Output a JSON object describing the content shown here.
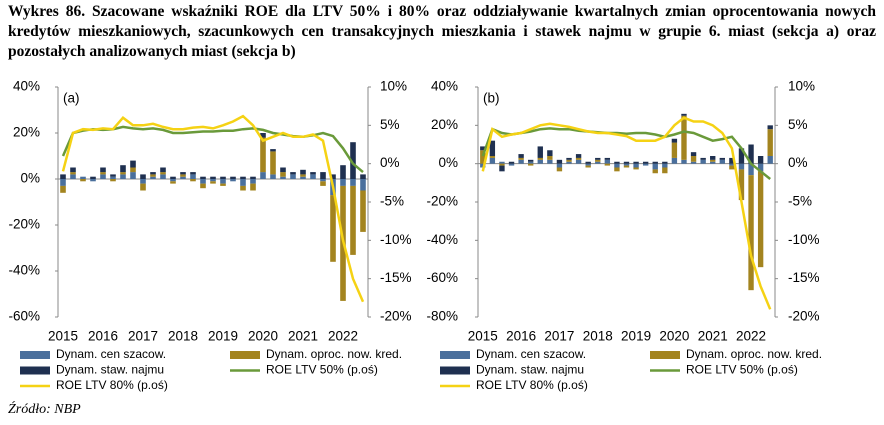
{
  "title": "Wykres 86. Szacowane wskaźniki ROE dla LTV 50% i 80% oraz oddziaływanie kwartalnych zmian oprocentowania nowych kredytów mieszkaniowych, szacunkowych cen transakcyjnych mieszkania i stawek najmu w grupie 6. miast (sekcja a) oraz pozostałych analizowanych miast (sekcja b)",
  "source": "Źródło: NBP",
  "chart_data": [
    {
      "type": "bar",
      "panel_label": "(a)",
      "stacked": true,
      "categories": [
        "2015",
        null,
        null,
        null,
        "2016",
        null,
        null,
        null,
        "2017",
        null,
        null,
        null,
        "2018",
        null,
        null,
        null,
        "2019",
        null,
        null,
        null,
        "2020",
        null,
        null,
        null,
        "2021",
        null,
        null,
        null,
        "2022",
        null,
        null
      ],
      "ylim": [
        -60,
        40
      ],
      "yticks": [
        {
          "value": -60,
          "label": "-60%"
        },
        {
          "value": -40,
          "label": "-40%"
        },
        {
          "value": -20,
          "label": "-20%"
        },
        {
          "value": 0,
          "label": "0%"
        },
        {
          "value": 20,
          "label": "20%"
        },
        {
          "value": 40,
          "label": "40%"
        }
      ],
      "y2lim": [
        -20,
        10
      ],
      "y2ticks": [
        {
          "value": -20,
          "label": "-20%"
        },
        {
          "value": -15,
          "label": "-15%"
        },
        {
          "value": -10,
          "label": "-10%"
        },
        {
          "value": -5,
          "label": "-5%"
        },
        {
          "value": 0,
          "label": "0%"
        },
        {
          "value": 5,
          "label": "5%"
        },
        {
          "value": 10,
          "label": "10%"
        }
      ],
      "series": [
        {
          "name": "Dynam. cen szacow.",
          "color": "#4a6f9c",
          "values": [
            -3,
            2,
            1,
            -1,
            2,
            1,
            2,
            3,
            -2,
            1,
            2,
            -1,
            1,
            2,
            -2,
            -1,
            -2,
            -1,
            -3,
            -2,
            3,
            2,
            1,
            2,
            1,
            2,
            -1,
            -7,
            -3,
            -3,
            -5
          ]
        },
        {
          "name": "Dynam. oproc. now. kred.",
          "color": "#a3841f",
          "values": [
            -3,
            1,
            -1,
            0,
            1,
            -1,
            1,
            2,
            -3,
            1,
            1,
            -1,
            1,
            -1,
            -2,
            -1,
            -1,
            0,
            -2,
            -3,
            15,
            10,
            2,
            0,
            1,
            0,
            -2,
            -29,
            -50,
            -30,
            -18
          ]
        },
        {
          "name": "Dynam. staw. najmu",
          "color": "#1f3050",
          "values": [
            2,
            2,
            0,
            1,
            2,
            1,
            3,
            3,
            2,
            1,
            2,
            1,
            1,
            1,
            1,
            1,
            1,
            1,
            1,
            1,
            2,
            1,
            2,
            1,
            2,
            1,
            3,
            2,
            6,
            16,
            2
          ]
        },
        {
          "name": "ROE LTV 50% (p.oś)",
          "type": "line",
          "axis": "y2",
          "color": "#6a9a3a",
          "values": [
            1,
            4,
            4.3,
            4.5,
            4.4,
            4.5,
            4.8,
            4.6,
            4.5,
            4.6,
            4.4,
            4,
            4,
            4.1,
            4.2,
            4.2,
            4.3,
            4.3,
            4.5,
            4.6,
            4.4,
            4,
            3.8,
            3.6,
            3.5,
            3.7,
            4,
            3.6,
            2,
            0,
            -1.1
          ]
        },
        {
          "name": "ROE LTV 80% (p.oś)",
          "type": "line",
          "axis": "y2",
          "color": "#f5d214",
          "values": [
            -1,
            4,
            4.5,
            4.4,
            4.6,
            4.5,
            6,
            5,
            5,
            5.2,
            4.8,
            4.5,
            4.5,
            4.7,
            4.8,
            4.6,
            5,
            5.5,
            6.2,
            5,
            3,
            3.5,
            4,
            3.5,
            3.5,
            3.8,
            3,
            -3,
            -10,
            -15,
            -18
          ]
        }
      ]
    },
    {
      "type": "bar",
      "panel_label": "(b)",
      "stacked": true,
      "categories": [
        "2015",
        null,
        null,
        null,
        "2016",
        null,
        null,
        null,
        "2017",
        null,
        null,
        null,
        "2018",
        null,
        null,
        null,
        "2019",
        null,
        null,
        null,
        "2020",
        null,
        null,
        null,
        "2021",
        null,
        null,
        null,
        "2022",
        null,
        null
      ],
      "ylim": [
        -80,
        40
      ],
      "yticks": [
        {
          "value": -80,
          "label": "-80%"
        },
        {
          "value": -60,
          "label": "-60%"
        },
        {
          "value": -40,
          "label": "-40%"
        },
        {
          "value": -20,
          "label": "-20%"
        },
        {
          "value": 0,
          "label": "0%"
        },
        {
          "value": 20,
          "label": "20%"
        },
        {
          "value": 40,
          "label": "40%"
        }
      ],
      "y2lim": [
        -20,
        10
      ],
      "y2ticks": [
        {
          "value": -20,
          "label": "-20%"
        },
        {
          "value": -15,
          "label": "-15%"
        },
        {
          "value": -10,
          "label": "-10%"
        },
        {
          "value": -5,
          "label": "-5%"
        },
        {
          "value": 0,
          "label": "0%"
        },
        {
          "value": 5,
          "label": "5%"
        },
        {
          "value": 10,
          "label": "10%"
        }
      ],
      "series": [
        {
          "name": "Dynam. cen szacow.",
          "color": "#4a6f9c",
          "values": [
            -2,
            3,
            1,
            -1,
            2,
            1,
            2,
            2,
            -2,
            1,
            2,
            -1,
            1,
            2,
            -2,
            -1,
            -2,
            -1,
            -3,
            -2,
            3,
            2,
            1,
            2,
            1,
            2,
            -1,
            -3,
            -6,
            -4,
            4
          ]
        },
        {
          "name": "Dynam. oproc. now. kred.",
          "color": "#a3841f",
          "values": [
            7,
            1,
            -1,
            0,
            1,
            -1,
            1,
            2,
            -2,
            1,
            1,
            -1,
            1,
            -1,
            -2,
            -1,
            -1,
            0,
            -2,
            -3,
            8,
            23,
            3,
            0,
            1,
            0,
            -2,
            -16,
            -60,
            -50,
            14
          ]
        },
        {
          "name": "Dynam. staw. najmu",
          "color": "#1f3050",
          "values": [
            2,
            8,
            -3,
            1,
            2,
            1,
            6,
            3,
            2,
            1,
            2,
            1,
            1,
            1,
            1,
            1,
            1,
            1,
            1,
            1,
            2,
            1,
            2,
            1,
            2,
            1,
            3,
            8,
            10,
            4,
            2
          ]
        },
        {
          "name": "ROE LTV 50% (p.oś)",
          "type": "line",
          "axis": "y2",
          "color": "#6a9a3a",
          "values": [
            1,
            4.5,
            4,
            3.8,
            4,
            4.2,
            4.5,
            4.6,
            4.5,
            4.5,
            4.3,
            4.2,
            4.1,
            4,
            4,
            3.9,
            4,
            4,
            3.8,
            3.5,
            3.8,
            4.2,
            4,
            3.5,
            3,
            3.2,
            3.5,
            2,
            0,
            -1,
            -2
          ]
        },
        {
          "name": "ROE LTV 80% (p.oś)",
          "type": "line",
          "axis": "y2",
          "color": "#f5d214",
          "values": [
            -1,
            4.5,
            3.5,
            3.8,
            4,
            4.5,
            5,
            5.2,
            5,
            4.8,
            4.5,
            4.2,
            4,
            4,
            3.8,
            3.6,
            3,
            3,
            3,
            3.5,
            5,
            6,
            5.5,
            5.5,
            5,
            4,
            2,
            -5,
            -12,
            -16,
            -19
          ]
        }
      ]
    }
  ]
}
